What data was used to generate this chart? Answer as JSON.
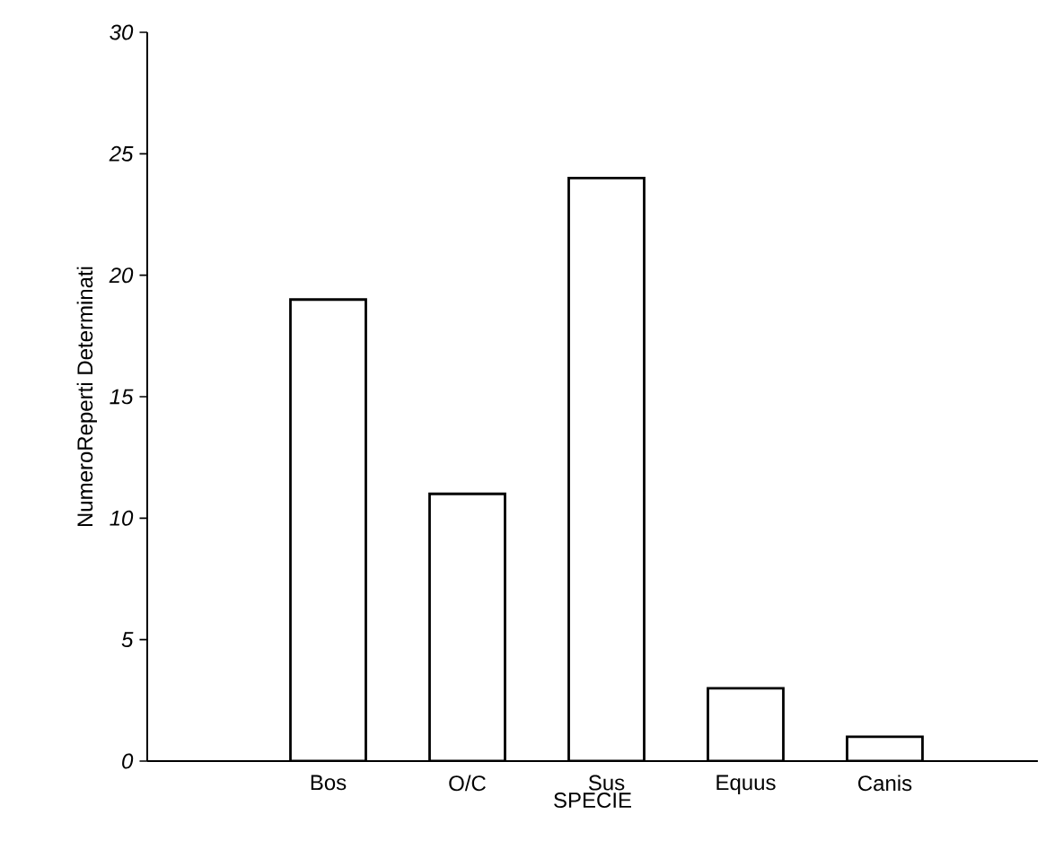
{
  "chart_data": {
    "type": "bar",
    "xlabel": "SPECIE",
    "ylabel": "NumeroReperti Determinati",
    "categories": [
      "Bos",
      "O/C",
      "Sus",
      "Equus",
      "Canis"
    ],
    "values": [
      19,
      11,
      24,
      3,
      1
    ],
    "color": "#ffffff",
    "ylim": [
      0,
      30
    ],
    "yticks": [
      0,
      5,
      10,
      15,
      20,
      25,
      30
    ]
  }
}
